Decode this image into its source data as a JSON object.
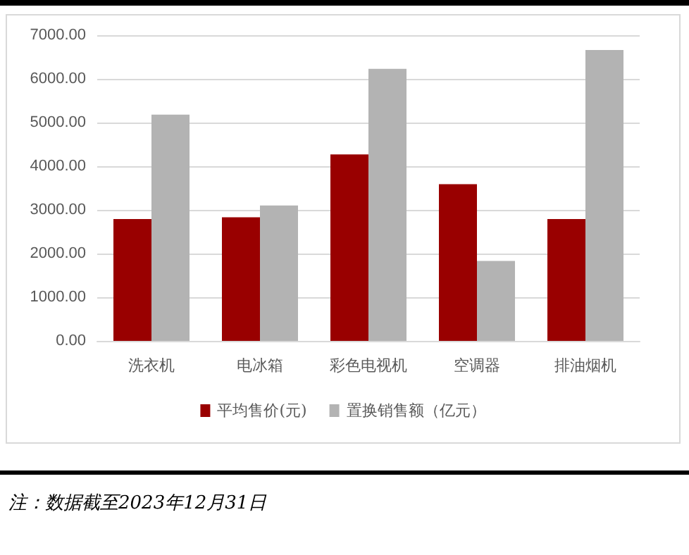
{
  "chart_data": {
    "type": "bar",
    "categories": [
      "洗衣机",
      "电冰箱",
      "彩色电视机",
      "空调器",
      "排油烟机"
    ],
    "series": [
      {
        "name": "平均售价(元)",
        "color": "#990000",
        "values": [
          2790,
          2830,
          4270,
          3590,
          2790
        ]
      },
      {
        "name": "置换销售额（亿元）",
        "color": "#b3b3b3",
        "values": [
          5180,
          3100,
          6230,
          1830,
          6660
        ]
      }
    ],
    "ylim": [
      0,
      7000
    ],
    "yticks": [
      {
        "value": 0,
        "label": "0.00"
      },
      {
        "value": 1000,
        "label": "1000.00"
      },
      {
        "value": 2000,
        "label": "2000.00"
      },
      {
        "value": 3000,
        "label": "3000.00"
      },
      {
        "value": 4000,
        "label": "4000.00"
      },
      {
        "value": 5000,
        "label": "5000.00"
      },
      {
        "value": 6000,
        "label": "6000.00"
      },
      {
        "value": 7000,
        "label": "7000.00"
      }
    ],
    "grid": "y",
    "legend": "bottom",
    "annotations": [
      "注：数据截至2023年12月31日"
    ]
  }
}
